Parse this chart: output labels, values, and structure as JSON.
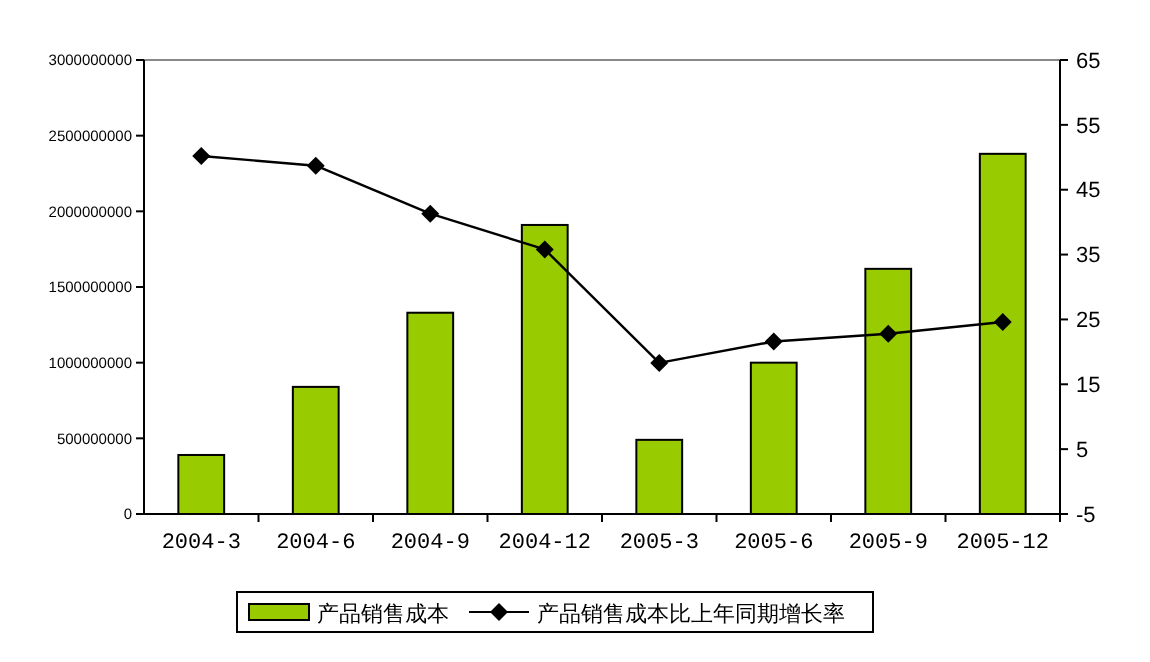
{
  "chart_data": {
    "type": "bar",
    "categories": [
      "2004-3",
      "2004-6",
      "2004-9",
      "2004-12",
      "2005-3",
      "2005-6",
      "2005-9",
      "2005-12"
    ],
    "series": [
      {
        "name": "产品销售成本",
        "color": "#99cc00",
        "values": [
          390000000,
          840000000,
          1330000000,
          1910000000,
          490000000,
          1000000000,
          1620000000,
          2380000000
        ]
      },
      {
        "name": "产品销售成本比上年同期增长率",
        "type": "line",
        "axis": "y2",
        "color": "#000000",
        "marker": "diamond",
        "values": [
          50.2,
          48.7,
          41.3,
          35.8,
          18.3,
          21.6,
          22.8,
          24.6
        ]
      }
    ],
    "ylim": [
      0,
      3000000000
    ],
    "yticks": [
      0,
      500000000,
      1000000000,
      1500000000,
      2000000000,
      2500000000,
      3000000000
    ],
    "y2lim": [
      -5,
      65
    ],
    "y2ticks": [
      -5,
      5,
      15,
      25,
      35,
      45,
      55,
      65
    ],
    "grid": false,
    "legend": "bottom"
  }
}
